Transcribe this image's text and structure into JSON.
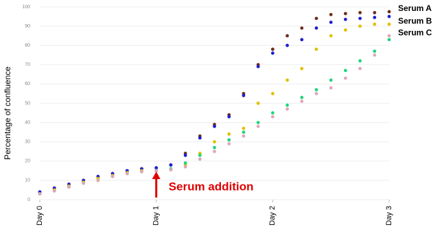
{
  "chart_data": {
    "type": "scatter",
    "y_label": "Percentage of confluence",
    "x": [
      0,
      0.125,
      0.25,
      0.375,
      0.5,
      0.625,
      0.75,
      0.875,
      1,
      1.125,
      1.25,
      1.375,
      1.5,
      1.625,
      1.75,
      1.875,
      2,
      2.125,
      2.25,
      2.375,
      2.5,
      2.625,
      2.75,
      2.875,
      3
    ],
    "series": [
      {
        "name": "Serum A",
        "color": "#6b2f1a",
        "values": [
          4,
          6,
          8,
          10,
          12,
          13.5,
          15,
          16,
          16.5,
          18,
          24,
          33,
          39,
          44,
          55,
          70,
          78,
          85,
          89,
          94,
          96,
          96.5,
          97,
          97,
          97.5
        ]
      },
      {
        "color": "#1f1fd0",
        "values": [
          4,
          6,
          8,
          10,
          12,
          13.5,
          15,
          16,
          16.5,
          18,
          23,
          32,
          38,
          43,
          54,
          69,
          76,
          80,
          83,
          89,
          92,
          93.5,
          94,
          94.5,
          95
        ]
      },
      {
        "name": "Serum B",
        "color": "#e0c000",
        "values": [
          3,
          5,
          7,
          9,
          11,
          12.5,
          14,
          15,
          15,
          15.5,
          18,
          24,
          30,
          34,
          37,
          50,
          55,
          62,
          68,
          78,
          85,
          88,
          90,
          91,
          91
        ]
      },
      {
        "color": "#22d47a",
        "values": [
          3,
          4.5,
          6.5,
          8.5,
          10,
          12,
          13.5,
          14.5,
          15,
          16,
          19,
          23,
          27,
          31,
          35,
          40,
          45,
          49,
          53,
          57,
          62,
          67,
          72,
          77,
          83
        ]
      },
      {
        "name": "Serum C",
        "color": "#e0a6b8",
        "values": [
          3,
          4.5,
          6.5,
          8.5,
          10,
          12,
          13.5,
          14.5,
          15,
          15.5,
          17,
          21,
          25,
          29,
          33,
          38,
          43,
          47,
          51,
          55,
          58,
          63,
          68,
          75,
          85
        ]
      }
    ],
    "xlim": [
      0,
      3
    ],
    "xticks": [
      {
        "value": 0,
        "label": "Day 0"
      },
      {
        "value": 1,
        "label": "Day 1"
      },
      {
        "value": 2,
        "label": "Day 2"
      },
      {
        "value": 3,
        "label": "Day 3"
      }
    ],
    "ylim": [
      0,
      100
    ],
    "yticks": [
      0,
      10,
      20,
      30,
      40,
      50,
      60,
      70,
      80,
      90,
      100
    ],
    "grid": true,
    "annotation": {
      "text": "Serum addition",
      "x": 1,
      "color": "#e00000"
    }
  }
}
